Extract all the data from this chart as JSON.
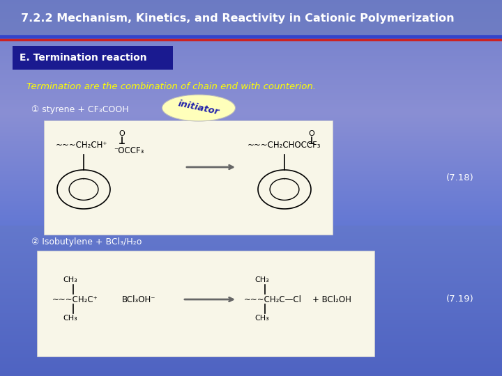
{
  "title": "7.2.2 Mechanism, Kinetics, and Reactivity in Cationic Polymerization",
  "title_color": "#ffffff",
  "title_fontsize": 11.5,
  "title_fontweight": "bold",
  "header_box_text": "E. Termination reaction",
  "header_box_bg": "#1a1a90",
  "header_box_text_color": "#ffffff",
  "body_text1": "Termination are the combination of chain end with counterion.",
  "body_text1_color": "#ffff00",
  "reaction1_label": "① styrene + CF₃COOH",
  "reaction1_label_color": "#ffffff",
  "initiator_text": "initiator",
  "initiator_bg": "#ffffbb",
  "initiator_text_color": "#2222aa",
  "eq_num1": "(7.18)",
  "eq_num2": "(7.19)",
  "eq_num_color": "#ffffff",
  "reaction2_label": "② Isobutylene + BCl₃/H₂o",
  "reaction2_label_color": "#ffffff",
  "bg_top": "#7788cc",
  "bg_mid": "#5566bb",
  "bg_bot": "#8899bb",
  "divider_color": "#2233cc",
  "divider_color2": "#cc3333",
  "box_bg": "#f8f6e8",
  "box_edge": "#cccccc"
}
